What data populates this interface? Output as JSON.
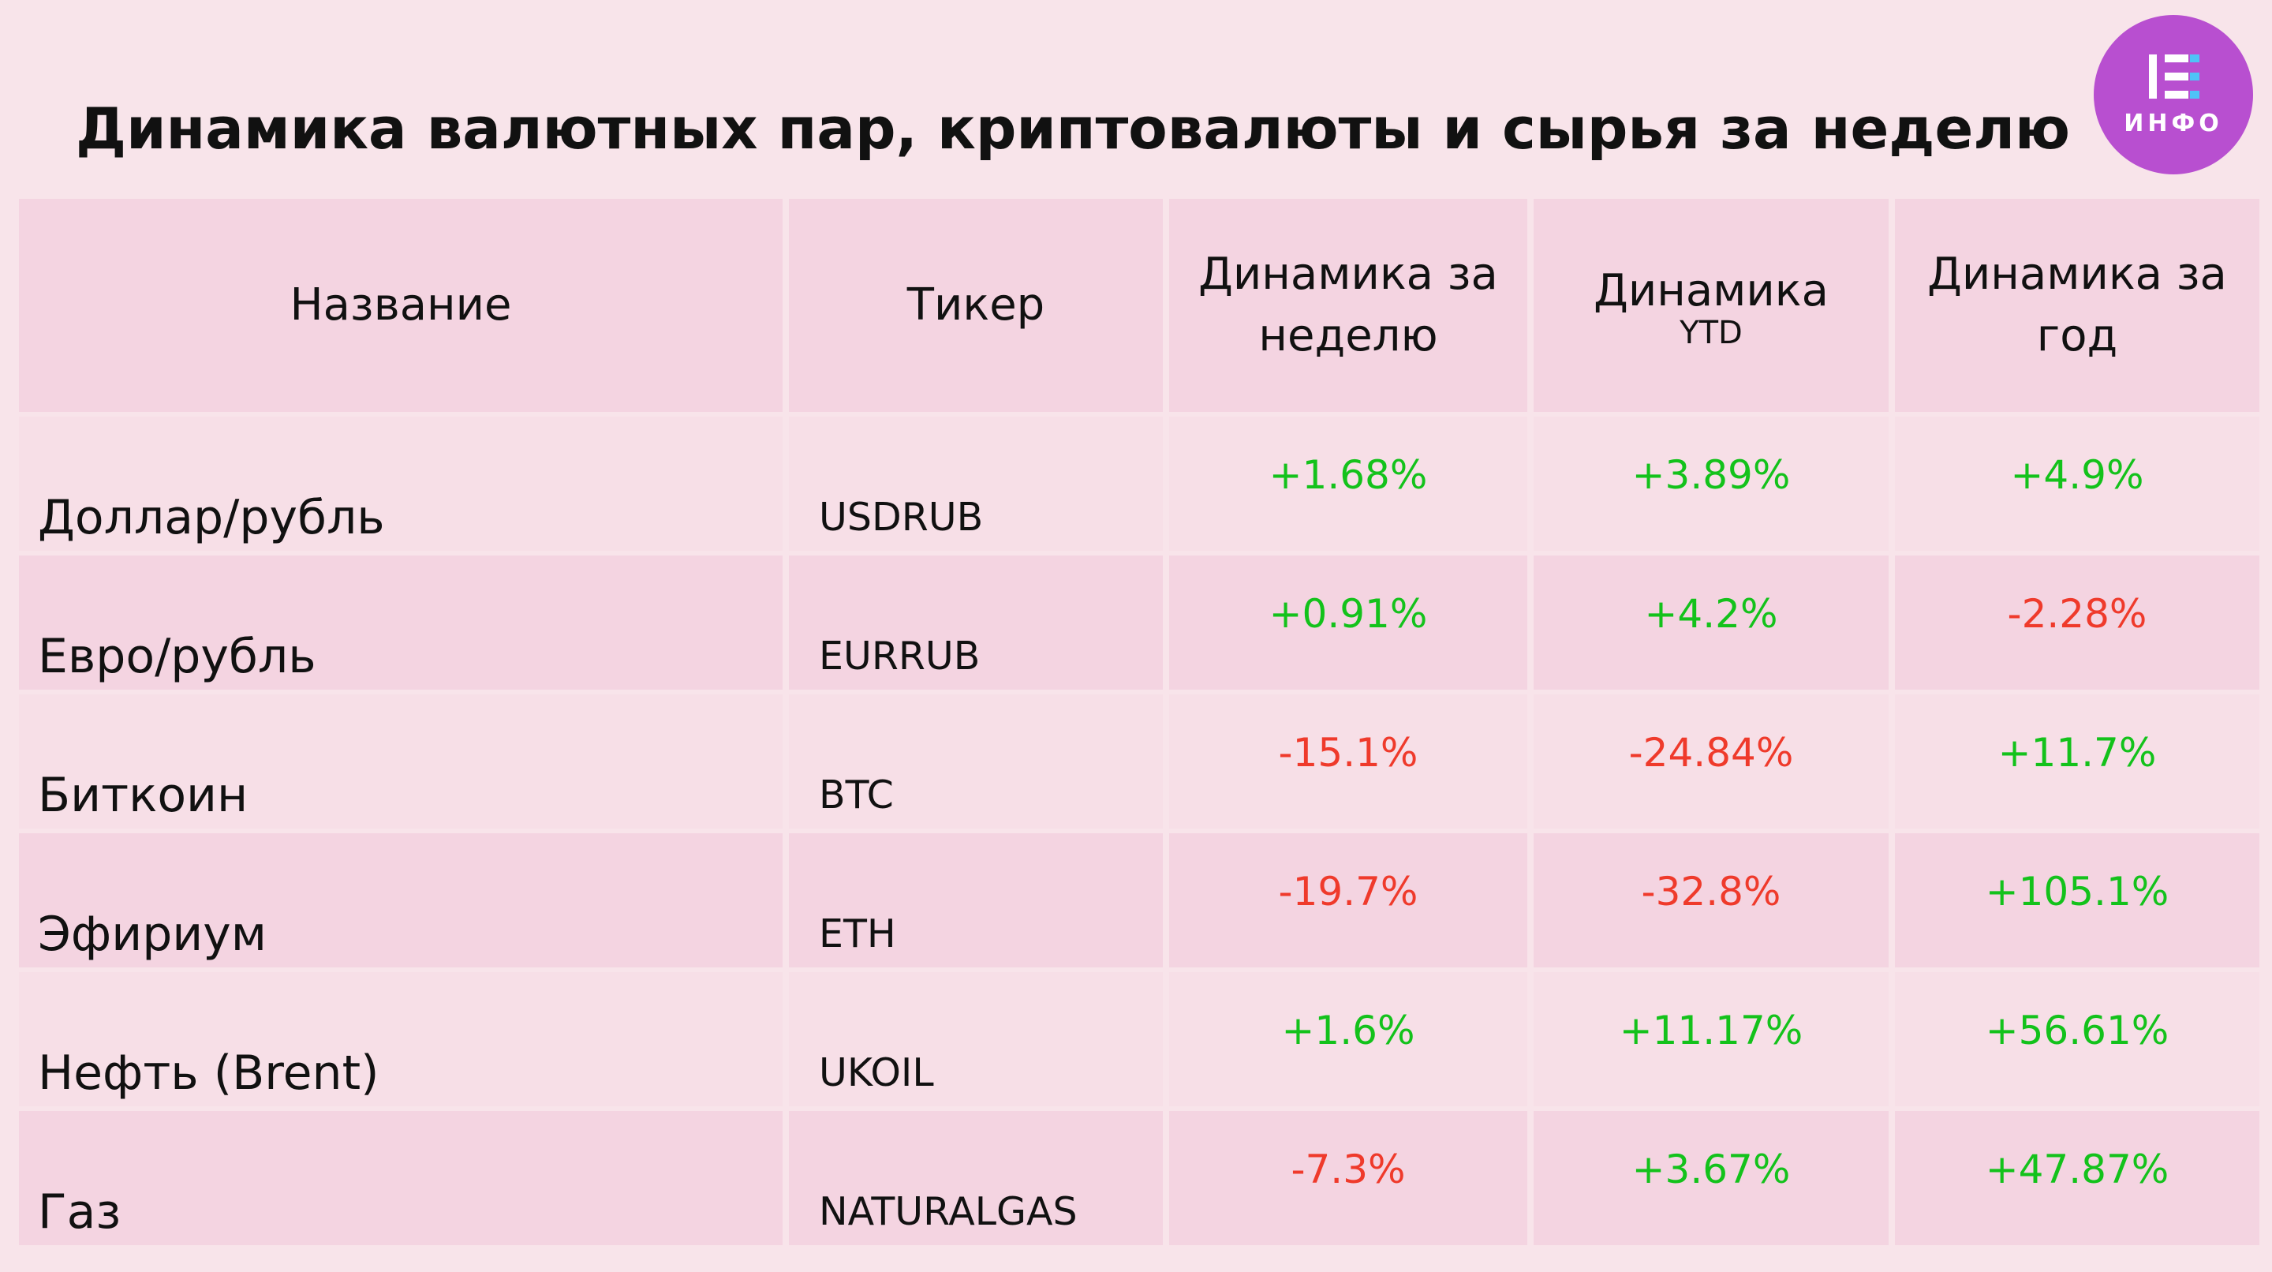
{
  "title": "Динамика валютных пар, криптовалюты и сырья за неделю",
  "logo": {
    "text": "ИНФО",
    "background": "#b84fd0"
  },
  "colors": {
    "background": "#f8e4ea",
    "header_cell": "#f4d4e1",
    "row_light": "#f7dfe7",
    "row_dark": "#f4d4e1",
    "positive": "#13c21b",
    "negative": "#ef3a2b"
  },
  "table": {
    "headers": {
      "name": {
        "lines": [
          "Название"
        ]
      },
      "ticker": {
        "lines": [
          "Тикер"
        ]
      },
      "week": {
        "lines": [
          "Динамика за",
          "неделю"
        ]
      },
      "ytd": {
        "lines": [
          "Динамика"
        ],
        "sub": "YTD"
      },
      "year": {
        "lines": [
          "Динамика за",
          "год"
        ]
      }
    },
    "rows": [
      {
        "name": "Доллар/рубль",
        "ticker": "USDRUB",
        "week": "+1.68%",
        "ytd": "+3.89%",
        "year": "+4.9%"
      },
      {
        "name": "Евро/рубль",
        "ticker": "EURRUB",
        "week": "+0.91%",
        "ytd": "+4.2%",
        "year": "-2.28%"
      },
      {
        "name": "Биткоин",
        "ticker": "BTC",
        "week": "-15.1%",
        "ytd": "-24.84%",
        "year": "+11.7%"
      },
      {
        "name": "Эфириум",
        "ticker": "ETH",
        "week": "-19.7%",
        "ytd": "-32.8%",
        "year": "+105.1%"
      },
      {
        "name": "Нефть (Brent)",
        "ticker": "UKOIL",
        "week": "+1.6%",
        "ytd": "+11.17%",
        "year": "+56.61%"
      },
      {
        "name": "Газ",
        "ticker": "NATURALGAS",
        "week": "-7.3%",
        "ytd": "+3.67%",
        "year": "+47.87%"
      }
    ]
  }
}
